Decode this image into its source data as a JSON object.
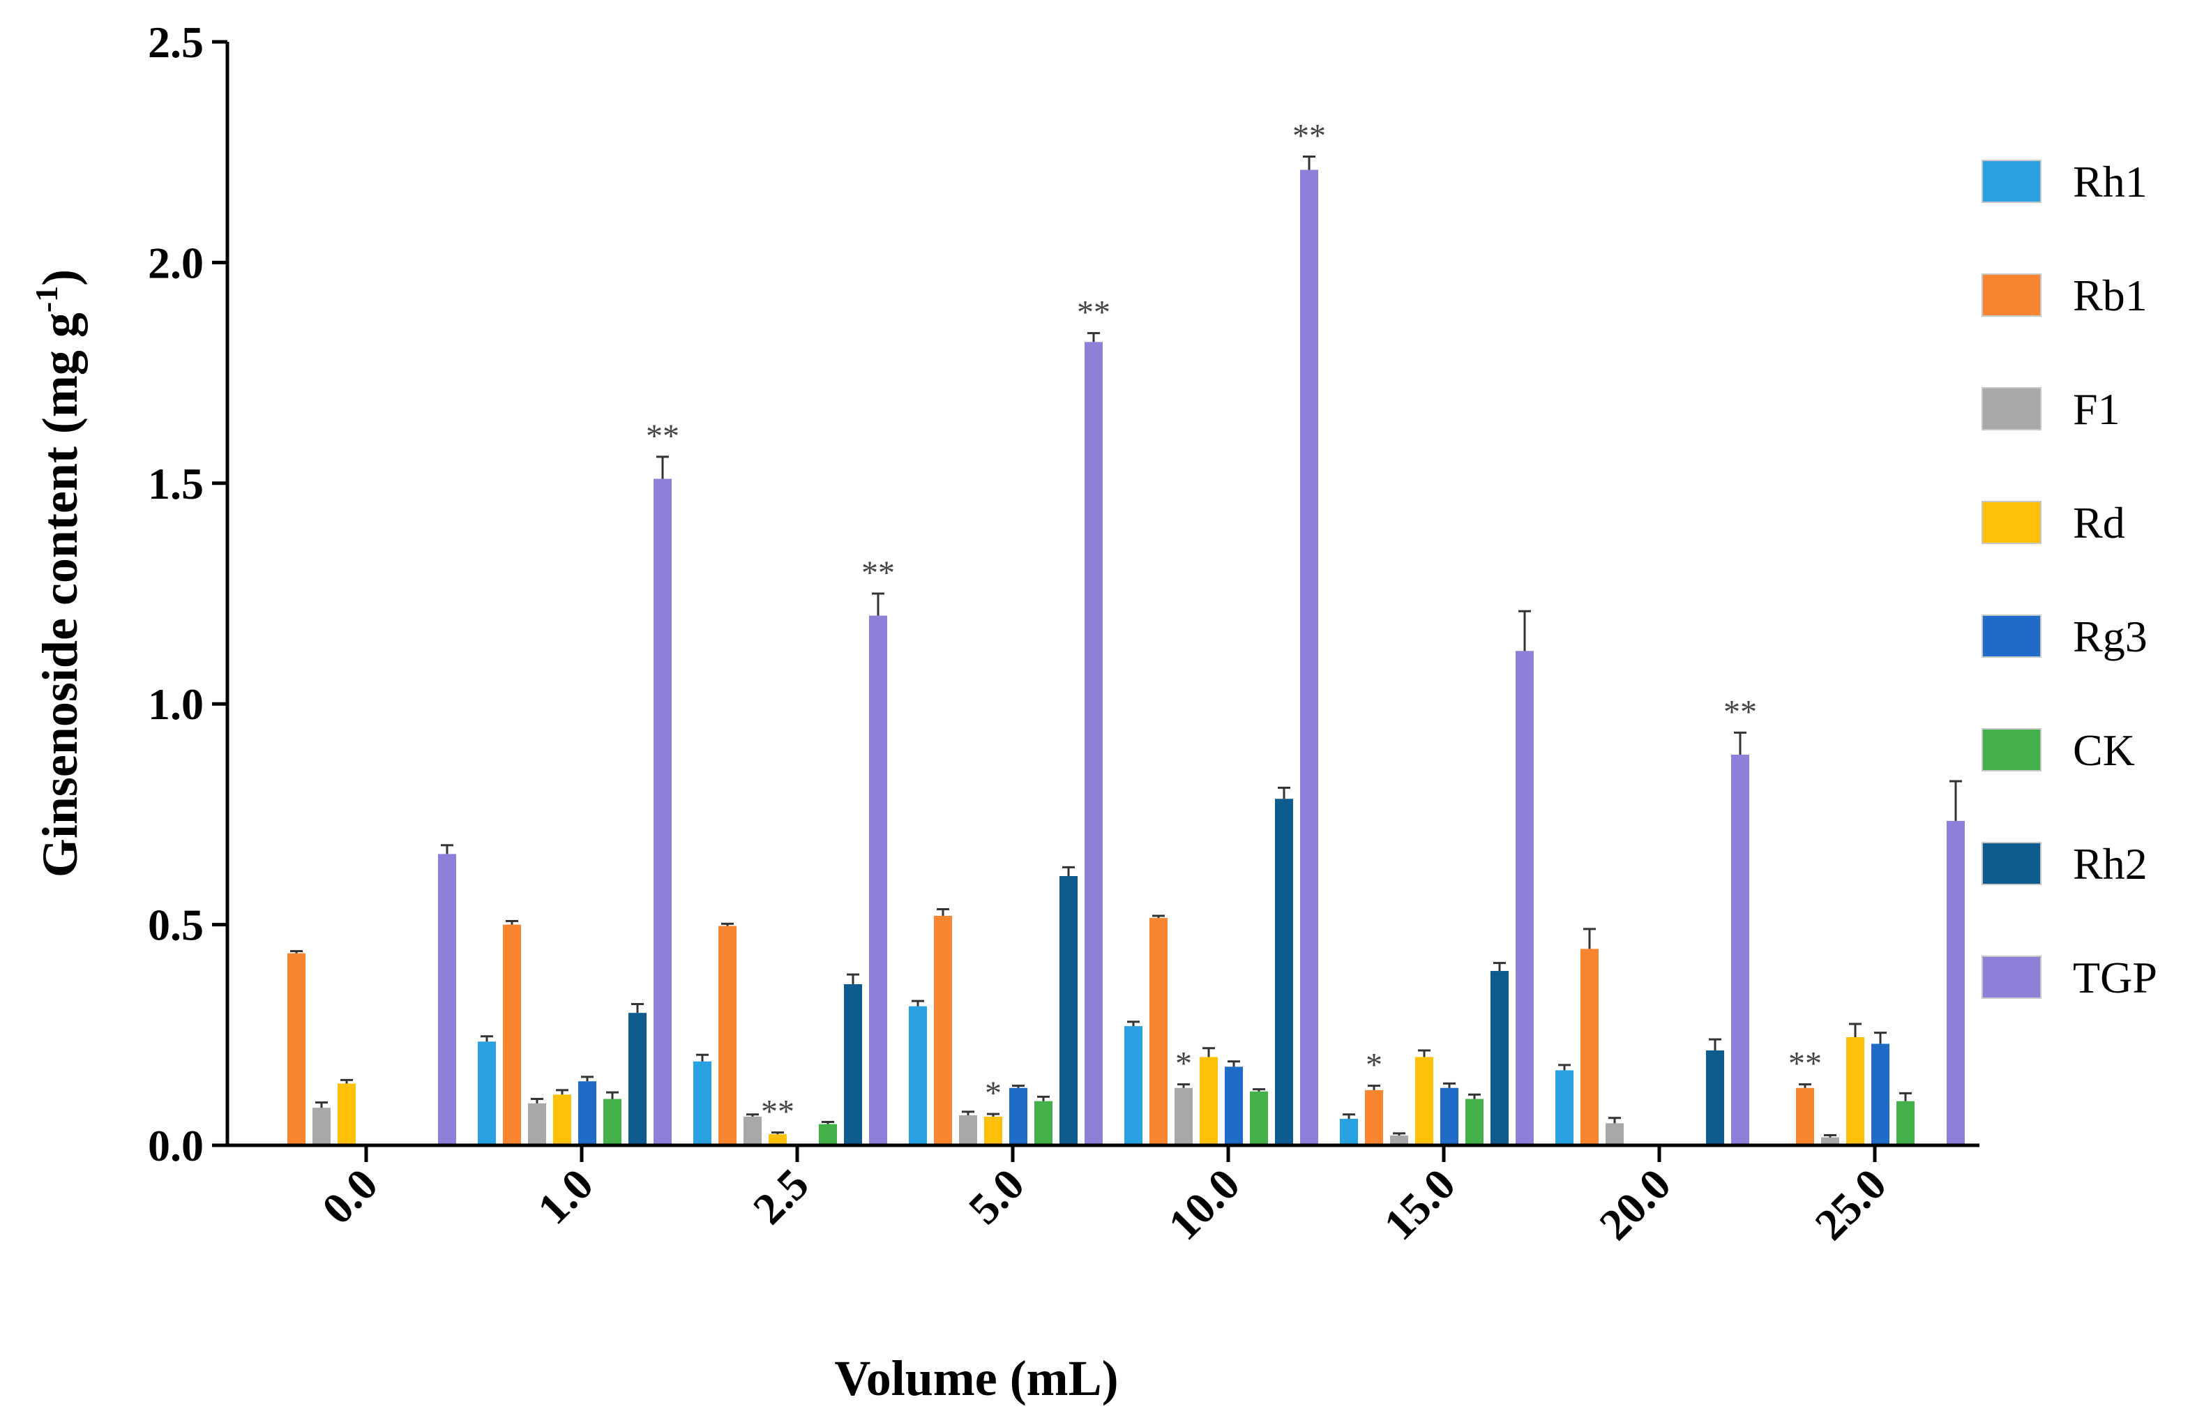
{
  "chart_data": {
    "type": "bar",
    "title": "",
    "xlabel": "Volume (mL)",
    "ylabel_main": "Ginsenoside content (mg g",
    "ylabel_sup": "-1",
    "ylabel_close": ")",
    "ylim": [
      0,
      2.5
    ],
    "yticks": [
      "0.0",
      "0.5",
      "1.0",
      "1.5",
      "2.0",
      "2.5"
    ],
    "ytick_values": [
      0,
      0.5,
      1.0,
      1.5,
      2.0,
      2.5
    ],
    "categories": [
      "0.0",
      "1.0",
      "2.5",
      "5.0",
      "10.0",
      "15.0",
      "20.0",
      "25.0"
    ],
    "legend_position": "right",
    "series": [
      {
        "name": "Rh1",
        "color": "#2aa1e0",
        "values": [
          0,
          0.235,
          0.19,
          0.315,
          0.27,
          0.06,
          0.17,
          0
        ],
        "errors": [
          0,
          0.012,
          0.015,
          0.012,
          0.01,
          0.01,
          0.012,
          0
        ],
        "sig": [
          "",
          "",
          "",
          "",
          "",
          "",
          "",
          ""
        ]
      },
      {
        "name": "Rb1",
        "color": "#f98530",
        "values": [
          0.435,
          0.5,
          0.497,
          0.52,
          0.515,
          0.125,
          0.445,
          0.13
        ],
        "errors": [
          0.005,
          0.008,
          0.005,
          0.015,
          0.005,
          0.01,
          0.045,
          0.008
        ],
        "sig": [
          "",
          "",
          "",
          "",
          "",
          "*",
          "",
          "**"
        ]
      },
      {
        "name": "F1",
        "color": "#a8a8a8",
        "values": [
          0.085,
          0.095,
          0.065,
          0.068,
          0.13,
          0.022,
          0.05,
          0.018
        ],
        "errors": [
          0.012,
          0.01,
          0.005,
          0.008,
          0.008,
          0.005,
          0.012,
          0.005
        ],
        "sig": [
          "",
          "",
          "",
          "",
          "*",
          "",
          "",
          ""
        ]
      },
      {
        "name": "Rd",
        "color": "#ffc107",
        "values": [
          0.14,
          0.115,
          0.025,
          0.065,
          0.2,
          0.2,
          0,
          0.245
        ],
        "errors": [
          0.008,
          0.01,
          0.004,
          0.006,
          0.02,
          0.015,
          0,
          0.03
        ],
        "sig": [
          "",
          "",
          "**",
          "*",
          "",
          "",
          "",
          ""
        ]
      },
      {
        "name": "Rg3",
        "color": "#1f6bc7",
        "values": [
          0,
          0.145,
          0,
          0.13,
          0.178,
          0.13,
          0,
          0.23
        ],
        "errors": [
          0,
          0.01,
          0,
          0.005,
          0.012,
          0.01,
          0,
          0.025
        ],
        "sig": [
          "",
          "",
          "",
          "",
          "",
          "",
          "",
          ""
        ]
      },
      {
        "name": "CK",
        "color": "#43b04a",
        "values": [
          0,
          0.105,
          0.048,
          0.1,
          0.122,
          0.105,
          0,
          0.1
        ],
        "errors": [
          0,
          0.015,
          0.005,
          0.01,
          0.005,
          0.01,
          0,
          0.018
        ],
        "sig": [
          "",
          "",
          "",
          "",
          "",
          "",
          "",
          ""
        ]
      },
      {
        "name": "Rh2",
        "color": "#0d5b8f",
        "values": [
          0,
          0.3,
          0.365,
          0.61,
          0.785,
          0.395,
          0.215,
          0
        ],
        "errors": [
          0,
          0.02,
          0.022,
          0.02,
          0.025,
          0.018,
          0.025,
          0
        ],
        "sig": [
          "",
          "",
          "",
          "",
          "",
          "",
          "",
          ""
        ]
      },
      {
        "name": "TGP",
        "color": "#8e80d8",
        "values": [
          0.66,
          1.51,
          1.2,
          1.82,
          2.21,
          1.12,
          0.885,
          0.735
        ],
        "errors": [
          0.02,
          0.05,
          0.05,
          0.02,
          0.03,
          0.09,
          0.05,
          0.09
        ],
        "sig": [
          "",
          "**",
          "**",
          "**",
          "**",
          "",
          "**",
          ""
        ]
      }
    ]
  }
}
